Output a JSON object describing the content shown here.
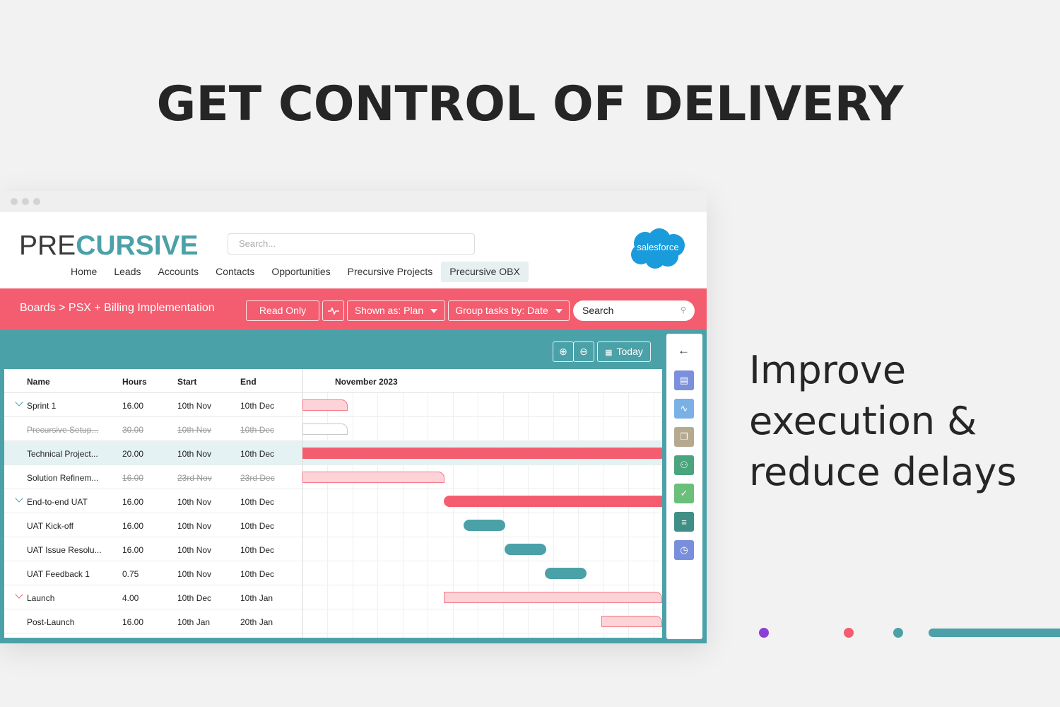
{
  "headline": "GET CONTROL OF DELIVERY",
  "tagline": [
    "Improve",
    "execution &",
    "reduce delays"
  ],
  "app": {
    "logo_pre": "PRE",
    "logo_cursive": "CURSIVE",
    "search_placeholder": "Search...",
    "nav": [
      "Home",
      "Leads",
      "Accounts",
      "Contacts",
      "Opportunities",
      "Precursive Projects",
      "Precursive OBX"
    ],
    "nav_active": "Precursive OBX",
    "salesforce_label": "salesforce"
  },
  "toolbar": {
    "breadcrumb": "Boards > PSX + Billing Implementation",
    "read_only": "Read Only",
    "shown_as": "Shown as: Plan",
    "group_tasks": "Group tasks by: Date",
    "search": "Search"
  },
  "board": {
    "today": "Today",
    "columns": {
      "name": "Name",
      "hours": "Hours",
      "start": "Start",
      "end": "End"
    },
    "month": "November 2023",
    "rows": [
      {
        "name": "Sprint 1",
        "hours": "16.00",
        "start": "10th Nov",
        "end": "10th Dec",
        "group": true,
        "strike": false
      },
      {
        "name": "Precursive Setup...",
        "hours": "30.00",
        "start": "10th Nov",
        "end": "10th Dec",
        "group": false,
        "strike": true
      },
      {
        "name": "Technical Project...",
        "hours": "20.00",
        "start": "10th Nov",
        "end": "10th Dec",
        "group": false,
        "strike": false
      },
      {
        "name": "Solution Refinem...",
        "hours": "16.00",
        "start": "23rd Nov",
        "end": "23rd Dec",
        "group": false,
        "strike": false,
        "strike_values": true
      },
      {
        "name": "End-to-end UAT",
        "hours": "16.00",
        "start": "10th Nov",
        "end": "10th Dec",
        "group": true,
        "strike": false
      },
      {
        "name": "UAT Kick-off",
        "hours": "16.00",
        "start": "10th Nov",
        "end": "10th Dec",
        "group": false,
        "strike": false
      },
      {
        "name": "UAT Issue Resolu...",
        "hours": "16.00",
        "start": "10th Nov",
        "end": "10th Dec",
        "group": false,
        "strike": false
      },
      {
        "name": "UAT Feedback 1",
        "hours": "0.75",
        "start": "10th Nov",
        "end": "10th Dec",
        "group": false,
        "strike": false
      },
      {
        "name": "Launch",
        "hours": "4.00",
        "start": "10th Dec",
        "end": "10th Jan",
        "group": true,
        "strike": false
      },
      {
        "name": "Post-Launch",
        "hours": "16.00",
        "start": "10th Jan",
        "end": "20th Jan",
        "group": false,
        "strike": false
      }
    ]
  },
  "side_icons": [
    {
      "name": "card-icon",
      "color": "#7b8fdc"
    },
    {
      "name": "activity-icon",
      "color": "#7ab0e6"
    },
    {
      "name": "clipboard-icon",
      "color": "#b5a98f"
    },
    {
      "name": "people-icon",
      "color": "#4aa57f"
    },
    {
      "name": "check-icon",
      "color": "#6abf7b"
    },
    {
      "name": "list-icon",
      "color": "#3f8f86"
    },
    {
      "name": "clock-icon",
      "color": "#7a8fdc"
    }
  ],
  "colors": {
    "brand_teal": "#4ba1a8",
    "brand_pink": "#f35d6f",
    "accent_purple": "#8a3fd6"
  }
}
